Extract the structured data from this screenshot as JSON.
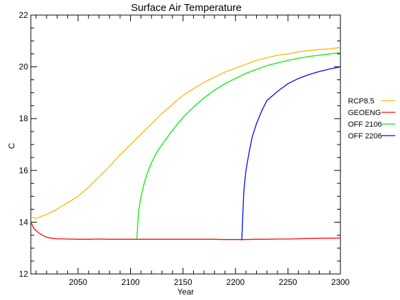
{
  "chart_data": {
    "type": "line",
    "title": "Surface Air Temperature",
    "xlabel": "Year",
    "ylabel": "C",
    "xlim": [
      2005,
      2300
    ],
    "ylim": [
      12,
      22
    ],
    "xticks": [
      2050,
      2100,
      2150,
      2200,
      2250,
      2300
    ],
    "yticks": [
      12,
      14,
      16,
      18,
      20,
      22
    ],
    "grid": false,
    "legend_position": "right",
    "series": [
      {
        "name": "RCP8.5",
        "color": "#FFB400",
        "x": [
          2005,
          2010,
          2020,
          2030,
          2040,
          2050,
          2060,
          2070,
          2080,
          2090,
          2100,
          2110,
          2120,
          2130,
          2140,
          2150,
          2160,
          2170,
          2180,
          2190,
          2200,
          2210,
          2220,
          2230,
          2240,
          2250,
          2260,
          2270,
          2280,
          2290,
          2300
        ],
        "values": [
          14.2,
          14.15,
          14.3,
          14.5,
          14.75,
          15.0,
          15.35,
          15.75,
          16.15,
          16.6,
          17.0,
          17.4,
          17.8,
          18.2,
          18.55,
          18.9,
          19.15,
          19.4,
          19.6,
          19.8,
          19.95,
          20.1,
          20.25,
          20.35,
          20.45,
          20.5,
          20.58,
          20.63,
          20.67,
          20.7,
          20.75
        ]
      },
      {
        "name": "GEOENG",
        "color": "#FF0000",
        "x": [
          2005,
          2008,
          2012,
          2016,
          2020,
          2025,
          2030,
          2040,
          2050,
          2060,
          2070,
          2080,
          2090,
          2100,
          2110,
          2120,
          2130,
          2140,
          2150,
          2160,
          2170,
          2180,
          2190,
          2200,
          2210,
          2220,
          2230,
          2240,
          2250,
          2260,
          2270,
          2280,
          2290,
          2300
        ],
        "values": [
          14.0,
          13.75,
          13.6,
          13.5,
          13.42,
          13.38,
          13.36,
          13.35,
          13.34,
          13.34,
          13.35,
          13.34,
          13.34,
          13.34,
          13.34,
          13.34,
          13.34,
          13.34,
          13.34,
          13.34,
          13.34,
          13.34,
          13.33,
          13.33,
          13.33,
          13.34,
          13.34,
          13.35,
          13.35,
          13.36,
          13.37,
          13.38,
          13.38,
          13.39
        ]
      },
      {
        "name": "OFF 2106",
        "color": "#00EE00",
        "x": [
          2106,
          2107,
          2108,
          2110,
          2113,
          2116,
          2120,
          2125,
          2130,
          2140,
          2150,
          2160,
          2170,
          2180,
          2190,
          2200,
          2210,
          2220,
          2230,
          2240,
          2250,
          2260,
          2270,
          2280,
          2290,
          2300
        ],
        "values": [
          13.35,
          14.0,
          14.5,
          15.0,
          15.5,
          15.9,
          16.3,
          16.7,
          17.0,
          17.55,
          18.05,
          18.45,
          18.8,
          19.1,
          19.35,
          19.55,
          19.75,
          19.9,
          20.05,
          20.15,
          20.25,
          20.33,
          20.4,
          20.45,
          20.5,
          20.55
        ]
      },
      {
        "name": "OFF 2206",
        "color": "#0000FF",
        "x": [
          2206,
          2207,
          2208,
          2210,
          2213,
          2216,
          2220,
          2225,
          2230,
          2240,
          2250,
          2260,
          2270,
          2280,
          2290,
          2300
        ],
        "values": [
          13.3,
          14.3,
          15.2,
          16.0,
          16.7,
          17.3,
          17.8,
          18.3,
          18.7,
          19.05,
          19.35,
          19.55,
          19.7,
          19.82,
          19.92,
          20.0
        ]
      }
    ]
  }
}
